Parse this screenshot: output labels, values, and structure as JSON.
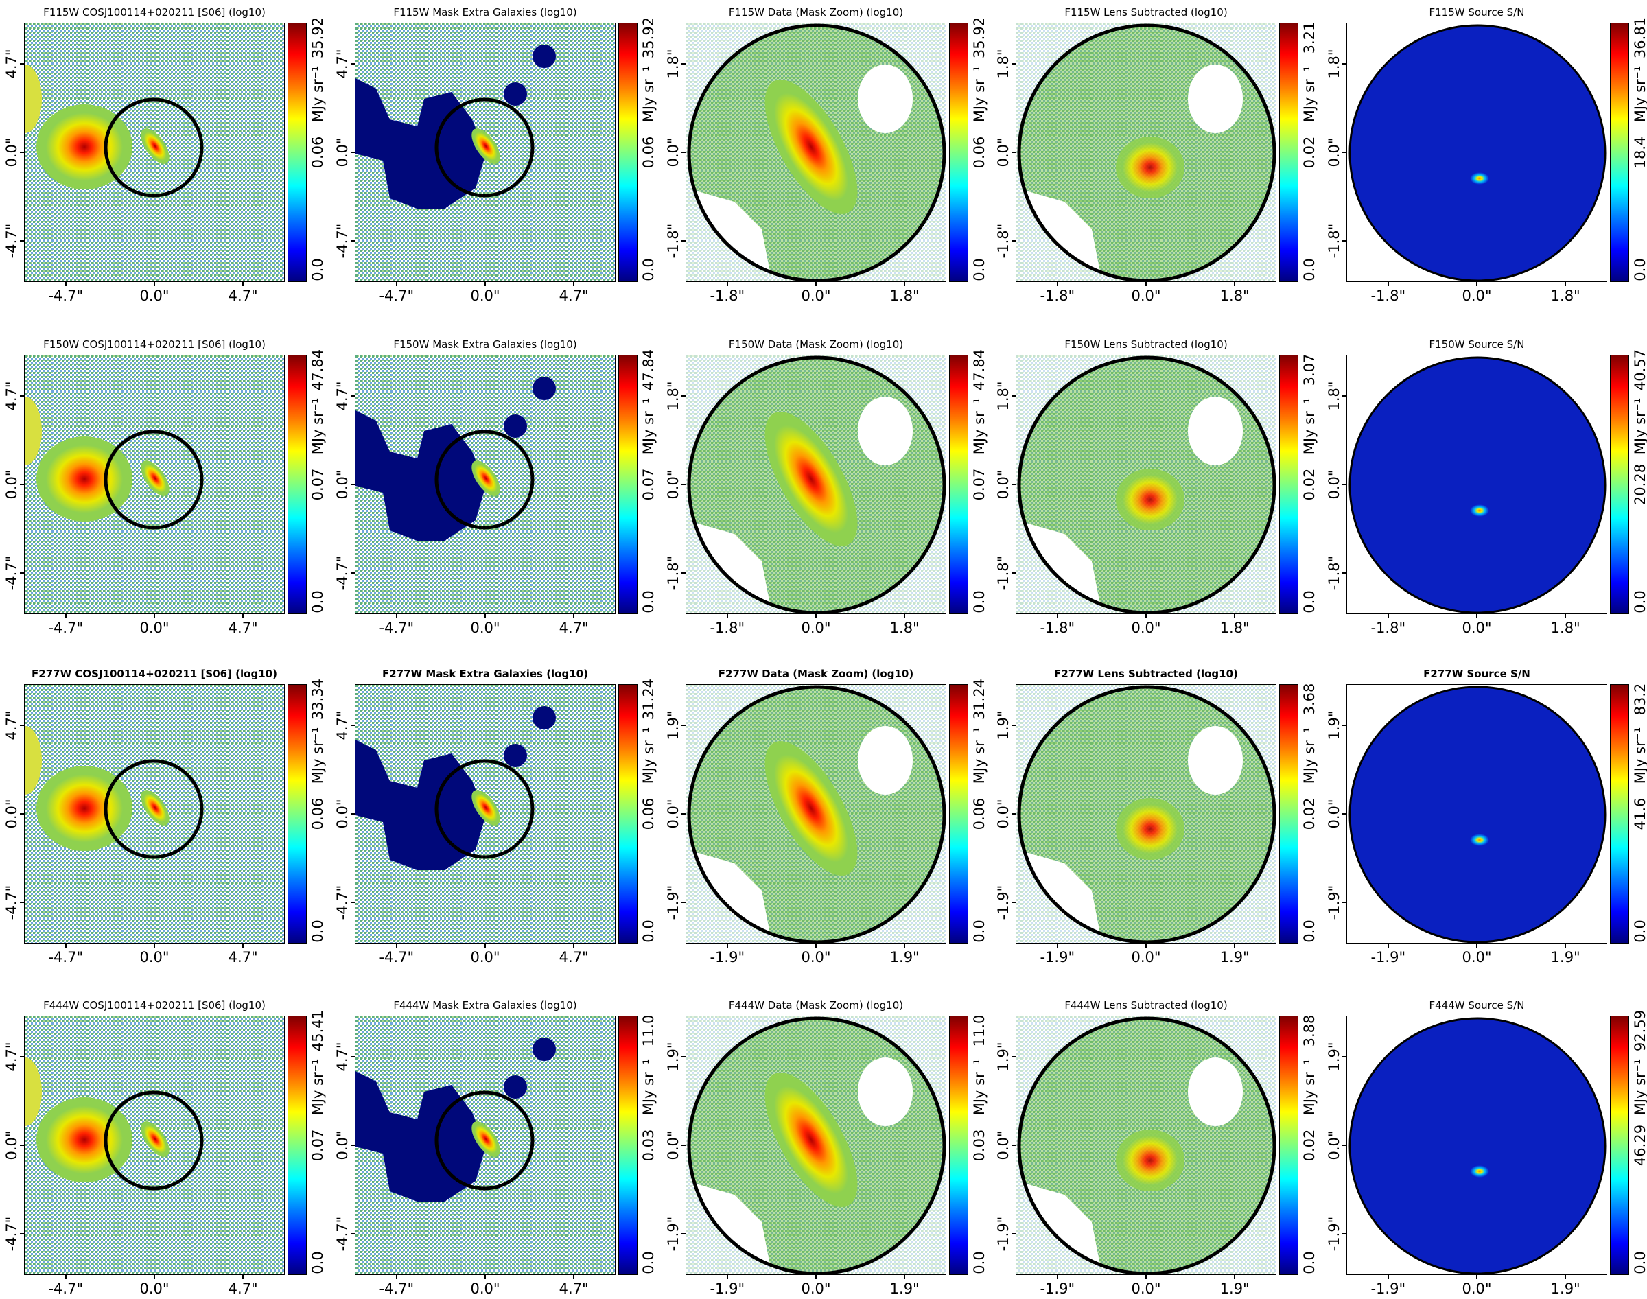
{
  "figure": {
    "unit_label": "MJy sr⁻¹",
    "colormap": "jet",
    "rows": [
      {
        "bold": false,
        "panels": [
          {
            "title": "F115W COSJ100114+020211 [S06] (log10)",
            "kind": "wide",
            "ticks": [
              "-4.7\"",
              "0.0\"",
              "4.7\""
            ],
            "cbar": [
              "0.0",
              "0.06",
              "35.92"
            ]
          },
          {
            "title": "F115W Mask Extra Galaxies (log10)",
            "kind": "mask",
            "ticks": [
              "-4.7\"",
              "0.0\"",
              "4.7\""
            ],
            "cbar": [
              "0.0",
              "0.06",
              "35.92"
            ]
          },
          {
            "title": "F115W Data (Mask Zoom) (log10)",
            "kind": "zoom",
            "ticks": [
              "-1.8\"",
              "0.0\"",
              "1.8\""
            ],
            "cbar": [
              "0.0",
              "0.06",
              "35.92"
            ]
          },
          {
            "title": "F115W Lens Subtracted (log10)",
            "kind": "sub",
            "ticks": [
              "-1.8\"",
              "0.0\"",
              "1.8\""
            ],
            "cbar": [
              "0.0",
              "0.02",
              "3.21"
            ]
          },
          {
            "title": "F115W Source S/N",
            "kind": "sn",
            "ticks": [
              "-1.8\"",
              "0.0\"",
              "1.8\""
            ],
            "cbar": [
              "0.0",
              "18.4",
              "36.81"
            ]
          }
        ]
      },
      {
        "bold": false,
        "panels": [
          {
            "title": "F150W COSJ100114+020211 [S06] (log10)",
            "kind": "wide",
            "ticks": [
              "-4.7\"",
              "0.0\"",
              "4.7\""
            ],
            "cbar": [
              "0.0",
              "0.07",
              "47.84"
            ]
          },
          {
            "title": "F150W Mask Extra Galaxies (log10)",
            "kind": "mask",
            "ticks": [
              "-4.7\"",
              "0.0\"",
              "4.7\""
            ],
            "cbar": [
              "0.0",
              "0.07",
              "47.84"
            ]
          },
          {
            "title": "F150W Data (Mask Zoom) (log10)",
            "kind": "zoom",
            "ticks": [
              "-1.8\"",
              "0.0\"",
              "1.8\""
            ],
            "cbar": [
              "0.0",
              "0.07",
              "47.84"
            ]
          },
          {
            "title": "F150W Lens Subtracted (log10)",
            "kind": "sub",
            "ticks": [
              "-1.8\"",
              "0.0\"",
              "1.8\""
            ],
            "cbar": [
              "0.0",
              "0.02",
              "3.07"
            ]
          },
          {
            "title": "F150W Source S/N",
            "kind": "sn",
            "ticks": [
              "-1.8\"",
              "0.0\"",
              "1.8\""
            ],
            "cbar": [
              "0.0",
              "20.28",
              "40.57"
            ]
          }
        ]
      },
      {
        "bold": true,
        "panels": [
          {
            "title": "F277W COSJ100114+020211 [S06] (log10)",
            "kind": "wide",
            "ticks": [
              "-4.7\"",
              "0.0\"",
              "4.7\""
            ],
            "cbar": [
              "0.0",
              "0.06",
              "33.34"
            ]
          },
          {
            "title": "F277W Mask Extra Galaxies (log10)",
            "kind": "mask",
            "ticks": [
              "-4.7\"",
              "0.0\"",
              "4.7\""
            ],
            "cbar": [
              "0.0",
              "0.06",
              "31.24"
            ]
          },
          {
            "title": "F277W Data (Mask Zoom) (log10)",
            "kind": "zoom",
            "ticks": [
              "-1.9\"",
              "0.0\"",
              "1.9\""
            ],
            "cbar": [
              "0.0",
              "0.06",
              "31.24"
            ]
          },
          {
            "title": "F277W Lens Subtracted (log10)",
            "kind": "sub",
            "ticks": [
              "-1.9\"",
              "0.0\"",
              "1.9\""
            ],
            "cbar": [
              "0.0",
              "0.02",
              "3.68"
            ]
          },
          {
            "title": "F277W Source S/N",
            "kind": "sn",
            "ticks": [
              "-1.9\"",
              "0.0\"",
              "1.9\""
            ],
            "cbar": [
              "0.0",
              "41.6",
              "83.2"
            ]
          }
        ]
      },
      {
        "bold": false,
        "panels": [
          {
            "title": "F444W COSJ100114+020211 [S06] (log10)",
            "kind": "wide",
            "ticks": [
              "-4.7\"",
              "0.0\"",
              "4.7\""
            ],
            "cbar": [
              "0.0",
              "0.07",
              "45.41"
            ]
          },
          {
            "title": "F444W Mask Extra Galaxies (log10)",
            "kind": "mask",
            "ticks": [
              "-4.7\"",
              "0.0\"",
              "4.7\""
            ],
            "cbar": [
              "0.0",
              "0.03",
              "11.0"
            ]
          },
          {
            "title": "F444W Data (Mask Zoom) (log10)",
            "kind": "zoom",
            "ticks": [
              "-1.9\"",
              "0.0\"",
              "1.9\""
            ],
            "cbar": [
              "0.0",
              "0.03",
              "11.0"
            ]
          },
          {
            "title": "F444W Lens Subtracted (log10)",
            "kind": "sub",
            "ticks": [
              "-1.9\"",
              "0.0\"",
              "1.9\""
            ],
            "cbar": [
              "0.0",
              "0.02",
              "3.88"
            ]
          },
          {
            "title": "F444W Source S/N",
            "kind": "sn",
            "ticks": [
              "-1.9\"",
              "0.0\"",
              "1.9\""
            ],
            "cbar": [
              "0.0",
              "46.29",
              "92.59"
            ]
          }
        ]
      }
    ]
  }
}
